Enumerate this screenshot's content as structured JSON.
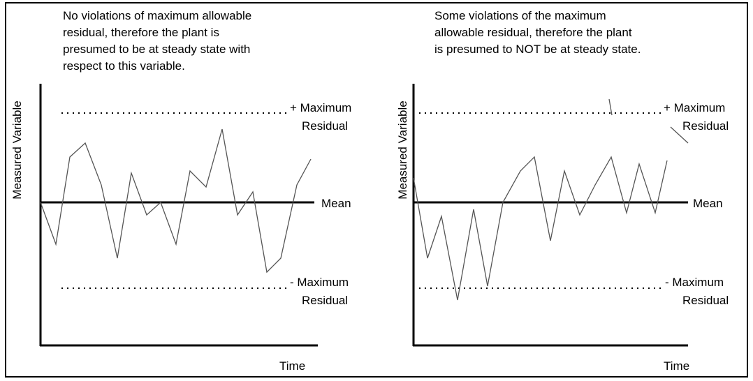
{
  "panels": [
    {
      "caption": [
        "No violations of maximum allowable",
        "residual, therefore the plant is",
        "presumed to be at steady state with",
        "respect to this variable."
      ],
      "y_label": "Measured Variable",
      "x_label": "Time",
      "upper_label": [
        "+ Maximum",
        "Residual"
      ],
      "mean_label": "Mean",
      "lower_label": [
        "- Maximum",
        "Residual"
      ]
    },
    {
      "caption": [
        "Some violations of the maximum",
        "allowable residual, therefore the plant",
        "is presumed to NOT be at steady state."
      ],
      "y_label": "Measured Variable",
      "x_label": "Time",
      "upper_label": [
        "+ Maximum",
        "Residual"
      ],
      "mean_label": "Mean",
      "lower_label": [
        "- Maximum",
        "Residual"
      ]
    }
  ]
}
